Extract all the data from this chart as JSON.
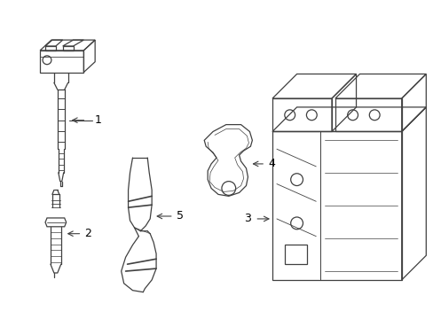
{
  "background_color": "#ffffff",
  "line_color": "#404040",
  "label_color": "#000000",
  "figsize": [
    4.89,
    3.6
  ],
  "dpi": 100
}
